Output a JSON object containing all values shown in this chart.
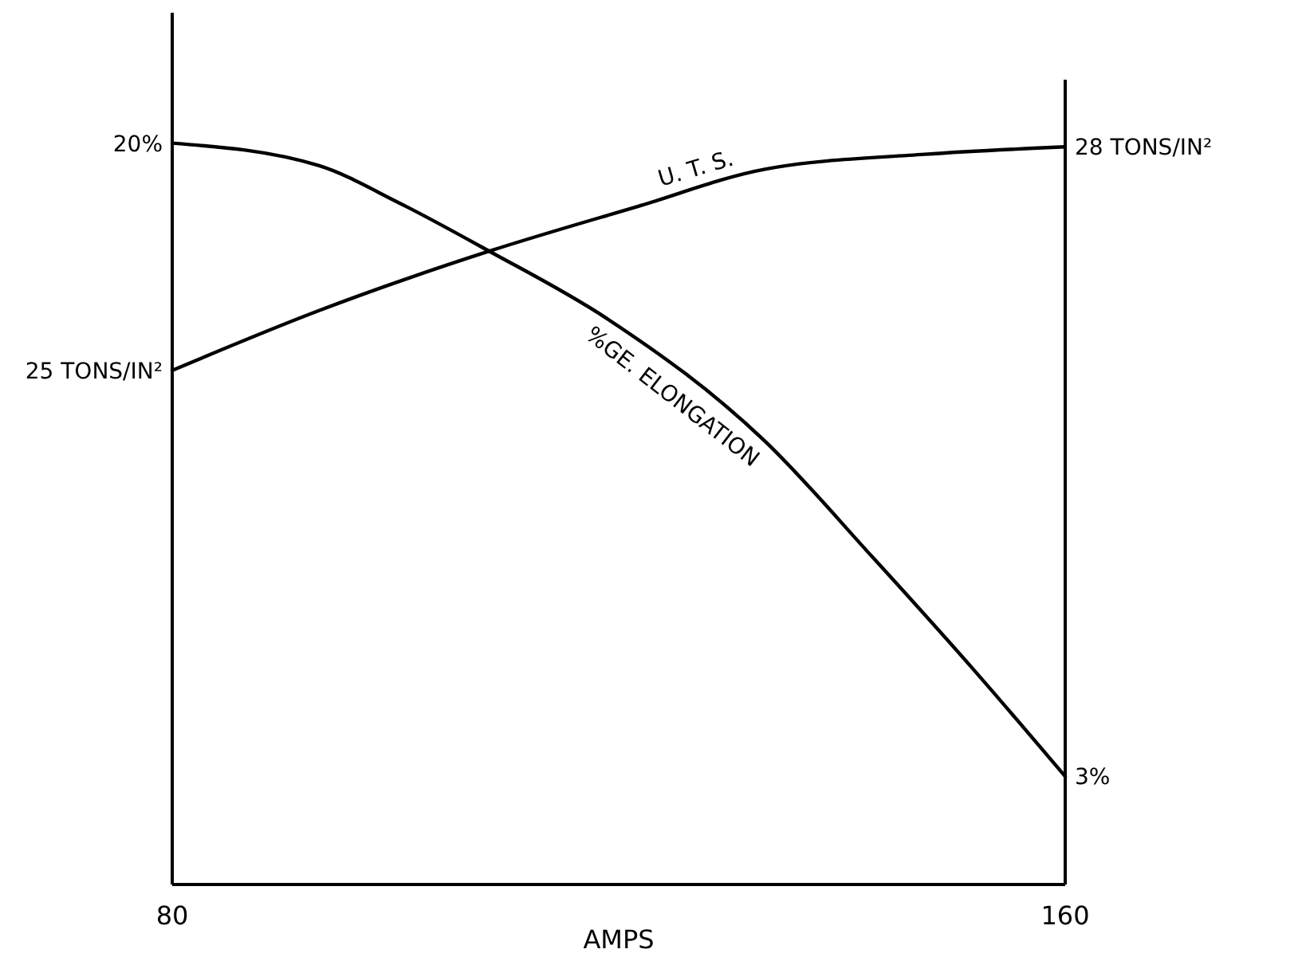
{
  "chart_data": {
    "type": "line",
    "xlabel": "AMPS",
    "x": [
      80,
      93.1,
      100.3,
      108.4,
      118.9,
      133.1,
      142.7,
      151.7,
      160
    ],
    "xlim": [
      80,
      160
    ],
    "xticks": [
      80,
      160
    ],
    "ylim": [
      0.1,
      23.5
    ],
    "y2lim": [
      18.1,
      29.8
    ],
    "tick_labels": "x",
    "grid": false,
    "marker": "none",
    "line_style": "solid",
    "series": [
      {
        "name": "U. T. S.",
        "color": "#000000",
        "axis": "y2",
        "x": [
          80,
          93.1,
          108.4,
          121.7,
          133.1,
          147.4,
          160
        ],
        "values": [
          25,
          25.8,
          26.6,
          27.2,
          27.7,
          27.9,
          28
        ],
        "value_labels": [
          "25 TONS/IN²",
          null,
          null,
          null,
          null,
          null,
          "28 TONS/IN²"
        ]
      },
      {
        "name": "%GE. ELONGATION",
        "color": "#000000",
        "axis": "y",
        "values": [
          20,
          19.4,
          18.4,
          17.1,
          15.3,
          12.0,
          8.9,
          5.9,
          3
        ],
        "value_labels": [
          "20%",
          null,
          null,
          null,
          null,
          null,
          null,
          null,
          "3%"
        ]
      }
    ]
  }
}
